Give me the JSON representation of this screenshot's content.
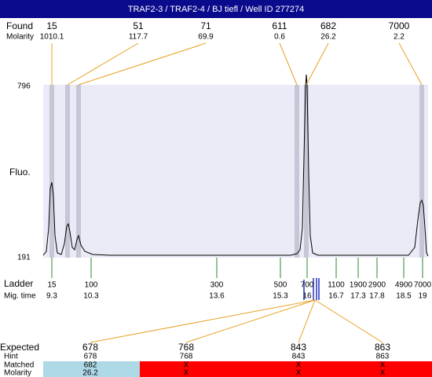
{
  "header": {
    "title": "TRAF2-3 / TRAF2-4 / BJ tiefl / Well ID 277274"
  },
  "found": {
    "label": "Found",
    "molarity_label": "Molarity",
    "peaks": [
      {
        "size": "15",
        "molarity": "1010.1"
      },
      {
        "size": "51",
        "molarity": "117.7"
      },
      {
        "size": "71",
        "molarity": "69.9"
      },
      {
        "size": "611",
        "molarity": "0.6"
      },
      {
        "size": "682",
        "molarity": "26.2"
      },
      {
        "size": "7000",
        "molarity": "2.2"
      }
    ]
  },
  "plot": {
    "y_label": "Fluo.",
    "y_top": "796",
    "y_bottom": "191"
  },
  "ladder": {
    "label": "Ladder",
    "time_label": "Mig. time",
    "bands": [
      {
        "size": "15",
        "time": "9.3"
      },
      {
        "size": "100",
        "time": "10.3"
      },
      {
        "size": "300",
        "time": "13.6"
      },
      {
        "size": "500",
        "time": "15.3"
      },
      {
        "size": "700",
        "time": "16"
      },
      {
        "size": "1100",
        "time": "16.7"
      },
      {
        "size": "1900",
        "time": "17.3"
      },
      {
        "size": "2900",
        "time": "17.8"
      },
      {
        "size": "4900",
        "time": "18.5"
      },
      {
        "size": "7000",
        "time": "19"
      }
    ]
  },
  "expected": {
    "label": "Expected",
    "hint_label": "Hint",
    "matched_label": "Matched",
    "molarity_label": "Molarity",
    "rows": [
      {
        "expected": "678",
        "hint": "678",
        "matched": "682",
        "molarity": "26.2"
      },
      {
        "expected": "768",
        "hint": "768",
        "matched": "X",
        "molarity": "X"
      },
      {
        "expected": "843",
        "hint": "843",
        "matched": "X",
        "molarity": "X"
      },
      {
        "expected": "863",
        "hint": "863",
        "matched": "X",
        "molarity": "X"
      }
    ]
  }
}
